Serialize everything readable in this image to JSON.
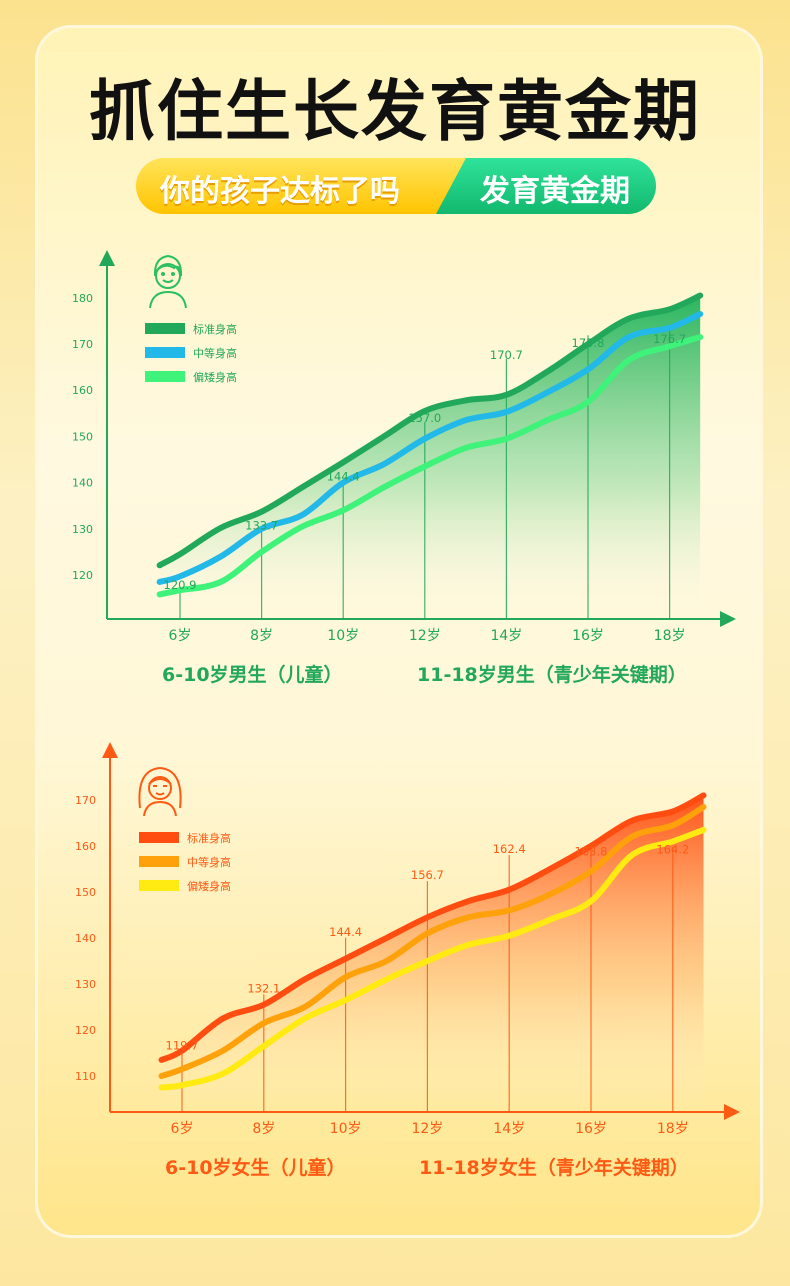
{
  "title": "抓住生长发育黄金期",
  "banner": {
    "left": "你的孩子达标了吗",
    "right": "发育黄金期"
  },
  "chart_data": [
    {
      "type": "line",
      "gender": "boy",
      "color_theme": "#1fae58",
      "icon": "boy-avatar-icon",
      "x_labels": [
        "6岁",
        "8岁",
        "10岁",
        "12岁",
        "14岁",
        "16岁",
        "18岁"
      ],
      "y_ticks": [
        120,
        130,
        140,
        150,
        160,
        170,
        180
      ],
      "legend": [
        {
          "name": "标准身高",
          "color": "#22a85a"
        },
        {
          "name": "中等身高",
          "color": "#22b8e8"
        },
        {
          "name": "偏矮身高",
          "color": "#3ef27a"
        }
      ],
      "series": [
        {
          "name": "标准身高",
          "color": "#22a85a",
          "x": [
            5.5,
            6,
            7,
            8,
            9,
            10,
            11,
            12,
            13,
            14,
            15,
            16,
            17,
            18,
            18.75
          ],
          "y": [
            122.1,
            124.5,
            130.2,
            133.7,
            139,
            144.4,
            150,
            155.5,
            157.8,
            159,
            164,
            170,
            175.5,
            177.5,
            180.5
          ]
        },
        {
          "name": "中等身高",
          "color": "#22b8e8",
          "x": [
            5.5,
            6,
            7,
            8,
            9,
            10,
            11,
            12,
            13,
            14,
            15,
            16,
            17,
            18,
            18.75
          ],
          "y": [
            118.5,
            119.7,
            124,
            130,
            133,
            140,
            144,
            149.5,
            153.5,
            155.3,
            159.5,
            164.5,
            171.5,
            173.5,
            176.5
          ]
        },
        {
          "name": "偏矮身高",
          "color": "#3ef27a",
          "x": [
            5.5,
            6,
            7,
            8,
            9,
            10,
            11,
            12,
            13,
            14,
            15,
            16,
            17,
            18,
            18.75
          ],
          "y": [
            115.8,
            116.7,
            118.5,
            125,
            130.5,
            134,
            139,
            143.5,
            147.5,
            149.5,
            153.5,
            157.5,
            166.5,
            169.5,
            171.5
          ]
        }
      ],
      "data_labels": [
        {
          "x": 6,
          "y": 120.9,
          "text": "120.9"
        },
        {
          "x": 8,
          "y": 133.7,
          "text": "133.7"
        },
        {
          "x": 10,
          "y": 144.4,
          "text": "144.4"
        },
        {
          "x": 12,
          "y": 157.0,
          "text": "157.0"
        },
        {
          "x": 14,
          "y": 170.7,
          "text": "170.7"
        },
        {
          "x": 16,
          "y": 175.8,
          "text": "175.8"
        },
        {
          "x": 18,
          "y": 176.7,
          "text": "176.7"
        }
      ],
      "sections": [
        "6-10岁男生（儿童）",
        "11-18岁男生（青少年关键期）"
      ]
    },
    {
      "type": "line",
      "gender": "girl",
      "color_theme": "#ff5a14",
      "icon": "girl-avatar-icon",
      "x_labels": [
        "6岁",
        "8岁",
        "10岁",
        "12岁",
        "14岁",
        "16岁",
        "18岁"
      ],
      "y_ticks": [
        110,
        120,
        130,
        140,
        150,
        160,
        170
      ],
      "legend": [
        {
          "name": "标准身高",
          "color": "#ff4d12"
        },
        {
          "name": "中等身高",
          "color": "#ffa10a"
        },
        {
          "name": "偏矮身高",
          "color": "#ffea12"
        }
      ],
      "series": [
        {
          "name": "标准身高",
          "color": "#ff4d12",
          "x": [
            5.5,
            6,
            7,
            8,
            9,
            10,
            11,
            12,
            13,
            14,
            15,
            16,
            17,
            18,
            18.75
          ],
          "y": [
            113.5,
            115.5,
            122.5,
            125.5,
            131,
            135.5,
            140,
            144.5,
            148,
            150.5,
            155,
            160,
            165.5,
            167.5,
            171
          ]
        },
        {
          "name": "中等身高",
          "color": "#ffa10a",
          "x": [
            5.5,
            6,
            7,
            8,
            9,
            10,
            11,
            12,
            13,
            14,
            15,
            16,
            17,
            18,
            18.75
          ],
          "y": [
            110,
            111.5,
            115.5,
            121.5,
            125,
            131.5,
            135,
            141,
            144.5,
            146,
            149.5,
            154.5,
            162,
            164.5,
            168.5
          ]
        },
        {
          "name": "偏矮身高",
          "color": "#ffea12",
          "x": [
            5.5,
            6,
            7,
            8,
            9,
            10,
            11,
            12,
            13,
            14,
            15,
            16,
            17,
            18,
            18.75
          ],
          "y": [
            107.5,
            108,
            110.5,
            116.5,
            122.5,
            126.5,
            131,
            135,
            138.5,
            140.5,
            144,
            148,
            158,
            161,
            163.5
          ]
        }
      ],
      "data_labels": [
        {
          "x": 6,
          "y": 119.7,
          "text": "119.7"
        },
        {
          "x": 8,
          "y": 132.1,
          "text": "132.1"
        },
        {
          "x": 10,
          "y": 144.4,
          "text": "144.4"
        },
        {
          "x": 12,
          "y": 156.7,
          "text": "156.7"
        },
        {
          "x": 14,
          "y": 162.4,
          "text": "162.4"
        },
        {
          "x": 16,
          "y": 163.8,
          "text": "163.8"
        },
        {
          "x": 18,
          "y": 164.2,
          "text": "164.2"
        }
      ],
      "sections": [
        "6-10岁女生（儿童）",
        "11-18岁女生（青少年关键期）"
      ]
    }
  ]
}
